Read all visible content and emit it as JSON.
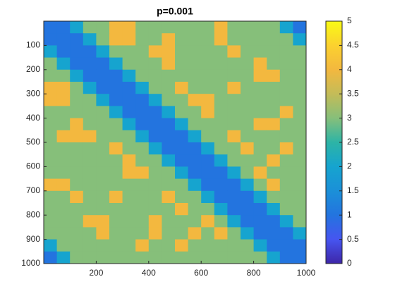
{
  "chart_data": {
    "type": "heatmap",
    "title": "p=0.001",
    "xlim": [
      0,
      1000
    ],
    "ylim": [
      0,
      1000
    ],
    "y_reversed": true,
    "xticks": [
      200,
      400,
      600,
      800,
      1000
    ],
    "yticks": [
      100,
      200,
      300,
      400,
      500,
      600,
      700,
      800,
      900,
      1000
    ],
    "clim": [
      0,
      5
    ],
    "cticks": [
      0,
      0.5,
      1,
      1.5,
      2,
      2.5,
      3,
      3.5,
      4,
      4.5,
      5
    ],
    "colormap": [
      "#3e26a8",
      "#4655f0",
      "#2374df",
      "#1b90d8",
      "#16a4cf",
      "#2db4a6",
      "#86bf7a",
      "#c4bc58",
      "#f3b83f",
      "#fbd12f",
      "#f9fb15"
    ],
    "z": [
      [
        1,
        1,
        2,
        3,
        3,
        4,
        4,
        3,
        3,
        3,
        3,
        3,
        3,
        4,
        3,
        3,
        3,
        3,
        2,
        1
      ],
      [
        1,
        1,
        1,
        2,
        3,
        4,
        4,
        3,
        3,
        4,
        3,
        3,
        3,
        4,
        3,
        3,
        3,
        3,
        3,
        2
      ],
      [
        2,
        1,
        1,
        1,
        2,
        3,
        3,
        3,
        4,
        4,
        3,
        3,
        3,
        3,
        4,
        3,
        3,
        3,
        3,
        3
      ],
      [
        3,
        2,
        1,
        1,
        1,
        2,
        3,
        3,
        3,
        4,
        3,
        3,
        3,
        3,
        3,
        3,
        4,
        3,
        3,
        3
      ],
      [
        3,
        3,
        2,
        1,
        1,
        1,
        2,
        3,
        3,
        3,
        3,
        3,
        3,
        3,
        3,
        3,
        4,
        4,
        3,
        3
      ],
      [
        4,
        4,
        3,
        2,
        1,
        1,
        1,
        2,
        3,
        3,
        4,
        3,
        3,
        3,
        4,
        3,
        3,
        3,
        3,
        3
      ],
      [
        4,
        4,
        3,
        3,
        2,
        1,
        1,
        1,
        2,
        3,
        3,
        4,
        4,
        3,
        3,
        3,
        3,
        3,
        3,
        3
      ],
      [
        3,
        3,
        3,
        3,
        3,
        2,
        1,
        1,
        1,
        2,
        3,
        3,
        4,
        3,
        3,
        3,
        3,
        3,
        4,
        3
      ],
      [
        3,
        3,
        4,
        3,
        3,
        3,
        2,
        1,
        1,
        1,
        2,
        3,
        3,
        3,
        3,
        3,
        4,
        4,
        3,
        3
      ],
      [
        3,
        4,
        4,
        4,
        3,
        3,
        3,
        2,
        1,
        1,
        1,
        2,
        3,
        3,
        4,
        3,
        3,
        3,
        3,
        3
      ],
      [
        3,
        3,
        3,
        3,
        3,
        4,
        3,
        3,
        2,
        1,
        1,
        1,
        2,
        3,
        3,
        4,
        3,
        3,
        4,
        3
      ],
      [
        3,
        3,
        3,
        3,
        3,
        3,
        4,
        3,
        3,
        2,
        1,
        1,
        1,
        2,
        3,
        3,
        3,
        4,
        3,
        3
      ],
      [
        3,
        3,
        3,
        3,
        3,
        3,
        4,
        4,
        3,
        3,
        2,
        1,
        1,
        1,
        2,
        3,
        4,
        3,
        3,
        3
      ],
      [
        4,
        4,
        3,
        3,
        3,
        3,
        3,
        3,
        3,
        3,
        3,
        2,
        1,
        1,
        1,
        2,
        3,
        4,
        3,
        3
      ],
      [
        3,
        3,
        4,
        3,
        3,
        4,
        3,
        3,
        3,
        4,
        3,
        3,
        2,
        1,
        1,
        1,
        2,
        3,
        3,
        3
      ],
      [
        3,
        3,
        3,
        3,
        3,
        3,
        3,
        3,
        3,
        3,
        4,
        3,
        3,
        2,
        1,
        1,
        1,
        2,
        3,
        3
      ],
      [
        3,
        3,
        3,
        4,
        4,
        3,
        3,
        3,
        4,
        3,
        3,
        3,
        4,
        3,
        2,
        1,
        1,
        1,
        2,
        3
      ],
      [
        3,
        3,
        3,
        3,
        4,
        3,
        3,
        3,
        4,
        3,
        3,
        4,
        3,
        4,
        3,
        2,
        1,
        1,
        1,
        2
      ],
      [
        2,
        3,
        3,
        3,
        3,
        3,
        3,
        4,
        3,
        3,
        4,
        3,
        3,
        3,
        3,
        3,
        2,
        1,
        1,
        1
      ],
      [
        1,
        2,
        3,
        3,
        3,
        3,
        3,
        3,
        3,
        3,
        3,
        3,
        3,
        3,
        3,
        3,
        3,
        2,
        1,
        1
      ]
    ]
  }
}
